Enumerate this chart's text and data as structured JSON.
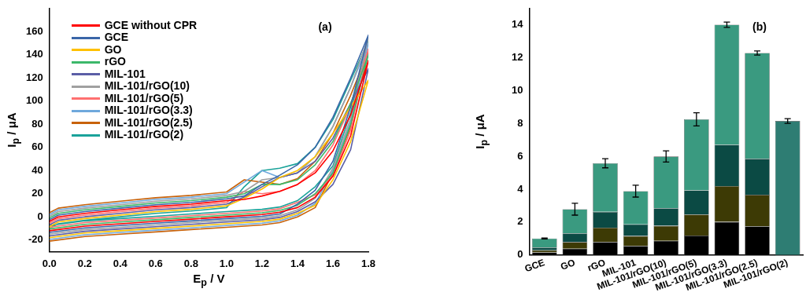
{
  "chart_data": [
    {
      "type": "line",
      "xlabel": "E$_{p}$ / V",
      "ylabel": "I$_{p}$ / μA",
      "annotations": [
        "(a)"
      ],
      "legend": "top left",
      "grid": false,
      "marker": "none",
      "line_style": "solid",
      "xlim": [
        0,
        1.8
      ],
      "xticks": [
        {
          "value": 0,
          "label": "0.0"
        },
        {
          "value": 0.2,
          "label": "0.2"
        },
        {
          "value": 0.4,
          "label": "0.4"
        },
        {
          "value": 0.6,
          "label": "0.6"
        },
        {
          "value": 0.8,
          "label": "0.8"
        },
        {
          "value": 1,
          "label": "1.0"
        },
        {
          "value": 1.2,
          "label": "1.2"
        },
        {
          "value": 1.4,
          "label": "1.4"
        },
        {
          "value": 1.6,
          "label": "1.6"
        },
        {
          "value": 1.8,
          "label": "1.8"
        }
      ],
      "ylim": [
        -30,
        180
      ],
      "yticks": [
        -20,
        0,
        20,
        40,
        60,
        80,
        100,
        120,
        140,
        160
      ],
      "x": [
        0,
        0.05,
        0.2,
        0.4,
        0.6,
        0.8,
        1.0,
        1.1,
        1.2,
        1.3,
        1.4,
        1.5,
        1.6,
        1.7,
        1.8,
        1.7,
        1.6,
        1.5,
        1.4,
        1.3,
        1.2,
        1.0,
        0.8,
        0.6,
        0.4,
        0.2,
        0
      ],
      "series": [
        {
          "name": "GCE without CPR",
          "color": "#ff0000",
          "values": [
            -4,
            0,
            3,
            6,
            9,
            11,
            14,
            15,
            18,
            22,
            28,
            38,
            57,
            88,
            135,
            70,
            35,
            17,
            8,
            4,
            2,
            0,
            -2,
            -4,
            -6,
            -8,
            -12
          ]
        },
        {
          "name": "GCE",
          "color": "#3a66a8",
          "values": [
            -2.5,
            1.5,
            4.5,
            7.5,
            10.5,
            12.5,
            15.5,
            18,
            28,
            36,
            45,
            60,
            86,
            120,
            157,
            95,
            48,
            23,
            11,
            2.5,
            0.5,
            -1.5,
            -3.5,
            -5.5,
            -7.5,
            -9.5,
            -13.5
          ]
        },
        {
          "name": "GO",
          "color": "#ffc000",
          "values": [
            -8.5,
            -4.5,
            -1.5,
            1.5,
            4.5,
            6.5,
            9.5,
            16,
            24,
            34,
            40,
            52,
            72,
            95,
            118,
            65,
            32,
            10,
            3,
            -2,
            -4,
            -6,
            -8,
            -10,
            -12,
            -14,
            -18
          ]
        },
        {
          "name": "rGO",
          "color": "#3cb86a",
          "values": [
            -1,
            3,
            6,
            9,
            12,
            14,
            17,
            20,
            28,
            28,
            32,
            45,
            65,
            98,
            140,
            80,
            38,
            20,
            10,
            5.5,
            3.5,
            1.5,
            -0.5,
            -2.5,
            -4.5,
            -6.5,
            -10.5
          ]
        },
        {
          "name": "MIL-101",
          "color": "#5b5ea6",
          "values": [
            -7,
            -3,
            0,
            3,
            6,
            8,
            11,
            17,
            26,
            34,
            38,
            48,
            68,
            98,
            128,
            58,
            28,
            13,
            4.5,
            -0.5,
            -2.5,
            -4.5,
            -6.5,
            -8.5,
            -10.5,
            -12.5,
            -16.5
          ]
        },
        {
          "name": "MIL-101/rGO(10)",
          "color": "#a0a0a0",
          "values": [
            0.5,
            4.5,
            7.5,
            10.5,
            13.5,
            15.5,
            18.5,
            22,
            32,
            34,
            38,
            52,
            78,
            112,
            155,
            85,
            42,
            16,
            6,
            1,
            -1,
            -3,
            -5,
            -7,
            -9,
            -11,
            -15
          ]
        },
        {
          "name": "MIL-101/rGO(5)",
          "color": "#ff7070",
          "values": [
            -5.5,
            -1.5,
            1.5,
            4.5,
            7.5,
            9.5,
            12.5,
            22,
            20,
            22,
            28,
            40,
            62,
            96,
            145,
            75,
            36,
            19,
            12.5,
            7,
            5,
            3,
            1,
            -1,
            -3,
            -5,
            -9
          ]
        },
        {
          "name": "MIL-101/rGO(3.3)",
          "color": "#6fa8dc",
          "values": [
            2,
            6,
            9,
            12,
            15,
            17,
            20,
            30,
            40,
            34,
            38,
            52,
            78,
            112,
            150,
            82,
            40,
            11.5,
            1.5,
            -3.5,
            -5.5,
            -7.5,
            -9.5,
            -11.5,
            -13.5,
            -15.5,
            -19.5
          ]
        },
        {
          "name": "MIL-101/rGO(2.5)",
          "color": "#c8620a",
          "values": [
            3.5,
            7.5,
            10.5,
            13.5,
            16.5,
            18.5,
            21.5,
            32,
            30,
            28,
            33,
            48,
            72,
            105,
            143,
            78,
            38,
            8,
            0,
            -5,
            -7,
            -9,
            -11,
            -13,
            -15,
            -17,
            -21
          ]
        },
        {
          "name": "MIL-101/rGO(2)",
          "color": "#1aa39a",
          "values": [
            -10,
            -6,
            -3,
            0,
            3,
            5,
            8,
            26,
            40,
            42,
            46,
            60,
            84,
            118,
            152,
            90,
            44,
            26,
            14,
            8.5,
            6.5,
            4.5,
            2.5,
            0.5,
            -1.5,
            -3.5,
            -7.5
          ]
        }
      ]
    },
    {
      "type": "bar",
      "stacked": true,
      "ylabel": "I$_{p}$ / μA",
      "annotations": [
        "(b)"
      ],
      "legend": false,
      "grid": false,
      "categories": [
        "GCE",
        "GO",
        "rGO",
        "MIL-101",
        "MIL-101/rGO(10)",
        "MIL-101/rGO(5)",
        "MIL-101/rGO(3.3)",
        "MIL-101/rGO(2.5)",
        "MIL-101/rGO(2)"
      ],
      "ylim": [
        0,
        15
      ],
      "yticks": [
        0,
        2,
        4,
        6,
        8,
        10,
        12,
        14
      ],
      "series": [
        {
          "color": "#000000",
          "values": [
            0.15,
            0.38,
            0.78,
            0.54,
            0.86,
            1.18,
            2.01,
            1.74,
            0
          ]
        },
        {
          "color": "#3d3a05",
          "values": [
            0.13,
            0.4,
            0.88,
            0.61,
            0.91,
            1.28,
            2.18,
            1.92,
            0
          ]
        },
        {
          "color": "#0b4a44",
          "values": [
            0.17,
            0.53,
            0.96,
            0.71,
            1.07,
            1.47,
            2.51,
            2.19,
            0
          ]
        },
        {
          "colors": [
            "#3a9a80",
            "#3a9a80",
            "#3a9a80",
            "#3a9a80",
            "#3a9a80",
            "#3a9a80",
            "#3a9a80",
            "#3a9a80",
            "#2e7d73"
          ],
          "values": [
            0.55,
            1.47,
            2.96,
            2.02,
            3.15,
            4.32,
            7.31,
            6.44,
            8.15
          ],
          "errors": [
            0.03,
            0.36,
            0.28,
            0.36,
            0.34,
            0.4,
            0.16,
            0.13,
            0.14
          ]
        }
      ]
    }
  ]
}
